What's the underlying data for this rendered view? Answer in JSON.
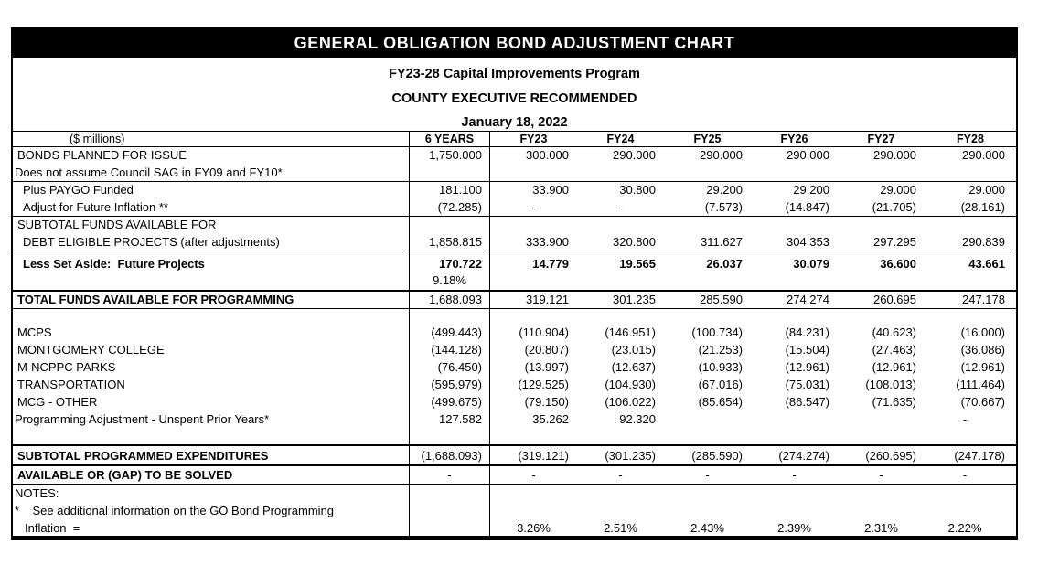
{
  "title_bar": {
    "title": "GENERAL OBLIGATION BOND ADJUSTMENT CHART"
  },
  "subtitles": [
    "FY23-28 Capital Improvements Program",
    "COUNTY EXECUTIVE RECOMMENDED",
    "January 18, 2022"
  ],
  "header_row": {
    "label": "($ millions)",
    "cols": [
      "6 YEARS",
      "FY23",
      "FY24",
      "FY25",
      "FY26",
      "FY27",
      "FY28"
    ]
  },
  "colors": {
    "bar_bg": "#000000",
    "bar_text": "#ffffff",
    "grid": "#000000"
  },
  "rows": [
    {
      "label": "BONDS PLANNED FOR ISSUE",
      "indent": 1,
      "values": [
        "1,750.000",
        "300.000",
        "290.000",
        "290.000",
        "290.000",
        "290.000",
        "290.000"
      ]
    },
    {
      "label": "Does not assume Council SAG in FY09 and FY10*",
      "indent": 0,
      "hr": 1
    },
    {
      "label": "Plus PAYGO Funded",
      "indent": 2,
      "values": [
        "181.100",
        "33.900",
        "30.800",
        "29.200",
        "29.200",
        "29.000",
        "29.000"
      ]
    },
    {
      "label": "Adjust for Future Inflation **",
      "indent": 2,
      "hr": 1,
      "values": [
        "(72.285)",
        "-",
        "-",
        "(7.573)",
        "(14.847)",
        "(21.705)",
        "(28.161)"
      ]
    },
    {
      "label": "SUBTOTAL FUNDS AVAILABLE FOR",
      "indent": 1
    },
    {
      "label": "DEBT ELIGIBLE PROJECTS (after adjustments)",
      "indent": 2,
      "hr": 1,
      "values": [
        "1,858.815",
        "333.900",
        "320.800",
        "311.627",
        "304.353",
        "297.295",
        "290.839"
      ]
    },
    {
      "label": "Less Set Aside:  Future Projects",
      "indent": 2,
      "boldLabel": true,
      "boldValues": true,
      "type": "tall",
      "values": [
        "170.722",
        "14.779",
        "19.565",
        "26.037",
        "30.079",
        "36.600",
        "43.661"
      ]
    },
    {
      "label": "",
      "type": "tall2",
      "hr": 2,
      "values": [
        "9.18%",
        "",
        "",
        "",
        "",
        "",
        ""
      ]
    },
    {
      "label": "TOTAL FUNDS AVAILABLE FOR PROGRAMMING",
      "indent": 1,
      "boldLabel": true,
      "hr": 1,
      "values": [
        "1,688.093",
        "319.121",
        "301.235",
        "285.590",
        "274.274",
        "260.695",
        "247.178"
      ]
    },
    {
      "label": "",
      "type": "spacer17"
    },
    {
      "label": "MCPS",
      "indent": 1,
      "values": [
        "(499.443)",
        "(110.904)",
        "(146.951)",
        "(100.734)",
        "(84.231)",
        "(40.623)",
        "(16.000)"
      ]
    },
    {
      "label": "MONTGOMERY COLLEGE",
      "indent": 1,
      "values": [
        "(144.128)",
        "(20.807)",
        "(23.015)",
        "(21.253)",
        "(15.504)",
        "(27.463)",
        "(36.086)"
      ]
    },
    {
      "label": "M-NCPPC PARKS",
      "indent": 1,
      "values": [
        "(76.450)",
        "(13.997)",
        "(12.637)",
        "(10.933)",
        "(12.961)",
        "(12.961)",
        "(12.961)"
      ]
    },
    {
      "label": "TRANSPORTATION",
      "indent": 1,
      "values": [
        "(595.979)",
        "(129.525)",
        "(104.930)",
        "(67.016)",
        "(75.031)",
        "(108.013)",
        "(111.464)"
      ]
    },
    {
      "label": "MCG - OTHER",
      "indent": 1,
      "values": [
        "(499.675)",
        "(79.150)",
        "(106.022)",
        "(85.654)",
        "(86.547)",
        "(71.635)",
        "(70.667)"
      ]
    },
    {
      "label": "Programming Adjustment - Unspent Prior Years*",
      "indent": 0,
      "values": [
        "127.582",
        "35.262",
        "92.320",
        "",
        "",
        "",
        "-"
      ]
    },
    {
      "label": "",
      "type": "spacer19",
      "hr": 2
    },
    {
      "label": "SUBTOTAL PROGRAMMED EXPENDITURES",
      "indent": 1,
      "boldLabel": true,
      "type": "mid21",
      "hr": 2,
      "values": [
        "(1,688.093)",
        "(319.121)",
        "(301.235)",
        "(285.590)",
        "(274.274)",
        "(260.695)",
        "(247.178)"
      ]
    },
    {
      "label": "AVAILABLE OR (GAP) TO BE SOLVED",
      "indent": 1,
      "boldLabel": true,
      "type": "mid20",
      "hr": 2,
      "values": [
        "-",
        "-",
        "-",
        "-",
        "-",
        "-",
        "-"
      ]
    },
    {
      "label": "NOTES:",
      "indent": 0
    },
    {
      "label": "*    See additional information on the GO Bond Programming",
      "indent": 0
    },
    {
      "label": "Inflation  =",
      "indent": 3,
      "values": [
        "",
        "3.26%",
        "2.51%",
        "2.43%",
        "2.39%",
        "2.31%",
        "2.22%"
      ]
    }
  ]
}
